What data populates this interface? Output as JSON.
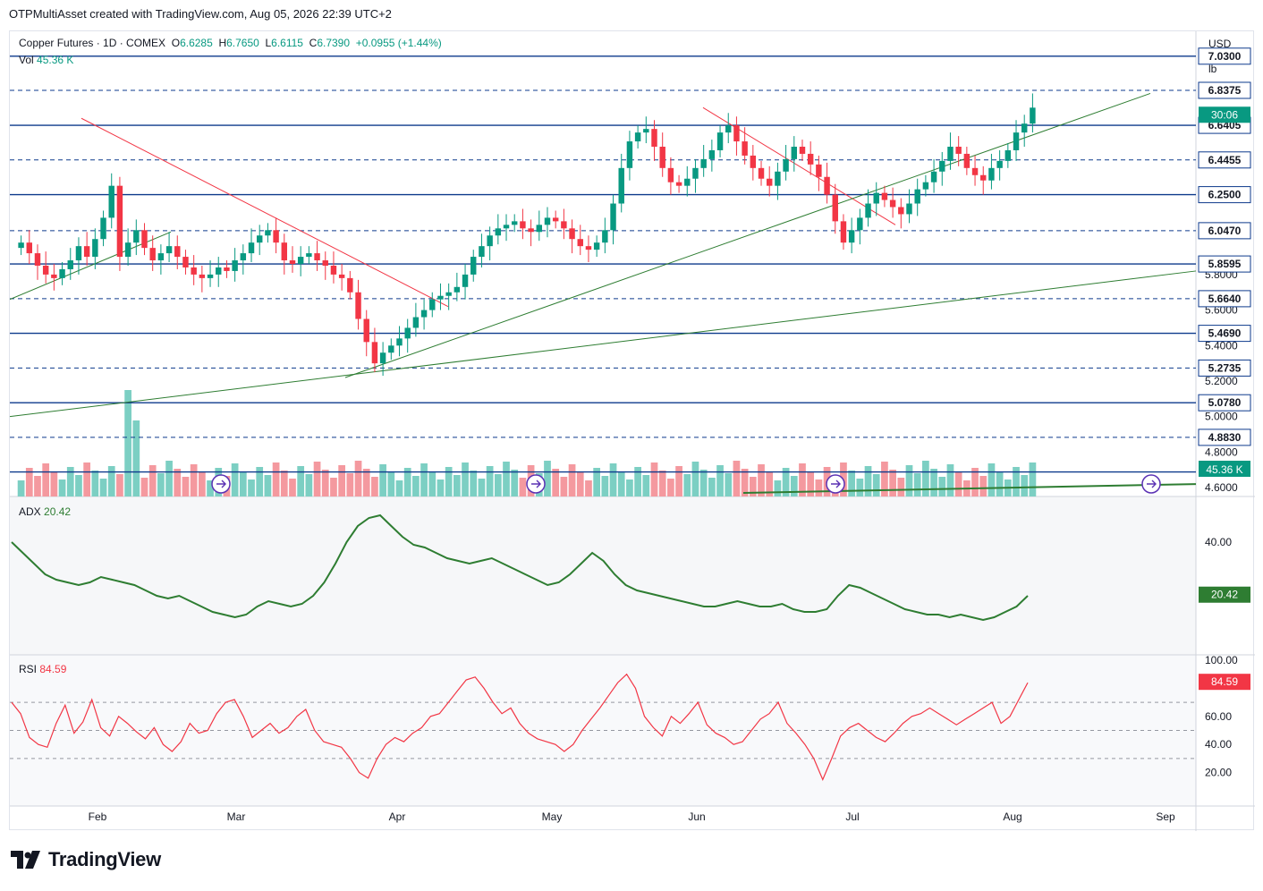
{
  "header": {
    "attribution": "OTPMultiAsset created with TradingView.com, Aug 05, 2026 22:39 UTC+2"
  },
  "legend": {
    "symbol": "Copper Futures · 1D · COMEX",
    "open_label": "O",
    "open": "6.6285",
    "high_label": "H",
    "high": "6.7650",
    "low_label": "L",
    "low": "6.6115",
    "close_label": "C",
    "close": "6.7390",
    "change": "+0.0955 (+1.44%)",
    "vol_label": "Vol",
    "vol": "45.36 K"
  },
  "price_axis": {
    "currency": "USD",
    "unit": "lb",
    "tick_labels": [
      "5.8000",
      "5.6000",
      "5.4000",
      "5.2000",
      "5.0000",
      "4.8000",
      "4.6000"
    ],
    "level_labels": [
      "7.0300",
      "6.8375",
      "6.6405",
      "6.4455",
      "6.2500",
      "6.0470",
      "5.8595",
      "5.6640",
      "5.4690",
      "5.2735",
      "5.0780",
      "4.8830"
    ],
    "countdown": "30:06",
    "volume_badge": "45.36 K"
  },
  "x_axis": {
    "labels": [
      "Feb",
      "Mar",
      "Apr",
      "May",
      "Jun",
      "Jul",
      "Aug",
      "Sep"
    ]
  },
  "adx": {
    "label": "ADX",
    "value": "20.42",
    "tick_labels": [
      "40.00"
    ],
    "value_badge": "20.42"
  },
  "rsi": {
    "label": "RSI",
    "value": "84.59",
    "tick_labels": [
      "100.00",
      "60.00",
      "40.00",
      "20.00"
    ],
    "value_badge": "84.59"
  },
  "branding": {
    "name": "TradingView"
  },
  "colors": {
    "up": "#089981",
    "down": "#f23645",
    "level_line": "#0d3a8c",
    "adx": "#2e7d32",
    "rsi": "#f23645",
    "vol_up": "#7ccfc3",
    "vol_down": "#f4999f"
  },
  "chart_data": [
    {
      "type": "candlestick",
      "title": "Copper Futures · 1D · COMEX",
      "x_axis": {
        "labels": [
          "Feb",
          "Mar",
          "Apr",
          "May",
          "Jun",
          "Jul",
          "Aug",
          "Sep"
        ]
      },
      "y_axis": {
        "unit": "USD/lb",
        "range": [
          4.55,
          7.17
        ]
      },
      "horizontal_levels": [
        7.03,
        6.8375,
        6.6405,
        6.4455,
        6.25,
        6.047,
        5.8595,
        5.664,
        5.469,
        5.2735,
        5.078,
        4.883,
        4.688
      ],
      "last": {
        "open": 6.6285,
        "high": 6.765,
        "low": 6.6115,
        "close": 6.739,
        "change": 0.0955,
        "change_pct": 1.44
      },
      "close_path": [
        5.98,
        5.92,
        5.85,
        5.8,
        5.78,
        5.83,
        5.88,
        5.96,
        5.9,
        6.0,
        6.12,
        6.3,
        5.9,
        5.98,
        6.05,
        5.95,
        5.88,
        5.92,
        5.96,
        5.9,
        5.84,
        5.8,
        5.78,
        5.8,
        5.84,
        5.82,
        5.88,
        5.92,
        5.98,
        6.02,
        6.05,
        5.98,
        5.88,
        5.86,
        5.9,
        5.92,
        5.88,
        5.85,
        5.8,
        5.78,
        5.7,
        5.55,
        5.42,
        5.3,
        5.36,
        5.4,
        5.44,
        5.5,
        5.56,
        5.6,
        5.66,
        5.68,
        5.7,
        5.73,
        5.8,
        5.9,
        5.96,
        6.02,
        6.06,
        6.08,
        6.1,
        6.06,
        6.04,
        6.08,
        6.12,
        6.1,
        6.06,
        6.0,
        5.96,
        5.94,
        5.98,
        6.05,
        6.2,
        6.4,
        6.55,
        6.6,
        6.62,
        6.52,
        6.4,
        6.32,
        6.3,
        6.34,
        6.4,
        6.45,
        6.5,
        6.6,
        6.64,
        6.55,
        6.47,
        6.4,
        6.34,
        6.3,
        6.38,
        6.45,
        6.52,
        6.48,
        6.42,
        6.35,
        6.25,
        6.1,
        5.98,
        6.05,
        6.12,
        6.2,
        6.26,
        6.22,
        6.18,
        6.14,
        6.2,
        6.28,
        6.32,
        6.38,
        6.44,
        6.52,
        6.48,
        6.4,
        6.36,
        6.33,
        6.4,
        6.44,
        6.5,
        6.6,
        6.65,
        6.74
      ],
      "volume_last": "45.36 K"
    },
    {
      "type": "line",
      "title": "ADX",
      "last_value": 20.42,
      "y_axis": {
        "ticks": [
          40
        ]
      },
      "values": [
        40,
        36,
        32,
        28,
        26,
        25,
        24,
        25,
        27,
        26,
        25,
        24,
        22,
        20,
        19,
        20,
        18,
        16,
        14,
        13,
        12,
        13,
        16,
        18,
        17,
        16,
        17,
        20,
        25,
        32,
        40,
        46,
        49,
        50,
        46,
        42,
        39,
        38,
        36,
        34,
        33,
        32,
        33,
        34,
        32,
        30,
        28,
        26,
        24,
        25,
        28,
        32,
        36,
        33,
        28,
        24,
        22,
        21,
        20,
        19,
        18,
        17,
        16,
        16,
        17,
        18,
        17,
        16,
        16,
        17,
        15,
        14,
        14,
        15,
        20,
        24,
        23,
        21,
        19,
        17,
        15,
        14,
        13,
        13,
        12,
        13,
        12,
        11,
        12,
        14,
        16,
        20
      ]
    },
    {
      "type": "line",
      "title": "RSI",
      "last_value": 84.59,
      "overbought": 70,
      "middle": 50,
      "oversold": 30,
      "y_axis": {
        "ticks": [
          100,
          60,
          40,
          20
        ]
      },
      "values": [
        70,
        62,
        45,
        40,
        38,
        55,
        68,
        48,
        56,
        72,
        52,
        46,
        60,
        55,
        49,
        44,
        52,
        40,
        35,
        42,
        55,
        48,
        50,
        62,
        70,
        72,
        60,
        45,
        50,
        55,
        48,
        52,
        60,
        65,
        50,
        42,
        40,
        38,
        30,
        20,
        16,
        30,
        40,
        45,
        42,
        48,
        52,
        60,
        62,
        70,
        78,
        86,
        88,
        80,
        70,
        62,
        66,
        55,
        48,
        44,
        42,
        40,
        35,
        40,
        50,
        58,
        66,
        75,
        84,
        90,
        80,
        60,
        52,
        46,
        60,
        55,
        62,
        70,
        54,
        48,
        45,
        40,
        42,
        50,
        58,
        62,
        70,
        55,
        48,
        40,
        30,
        15,
        30,
        46,
        52,
        55,
        50,
        45,
        42,
        48,
        55,
        60,
        62,
        66,
        62,
        58,
        54,
        58,
        62,
        66,
        70,
        55,
        60,
        72,
        84
      ]
    }
  ]
}
